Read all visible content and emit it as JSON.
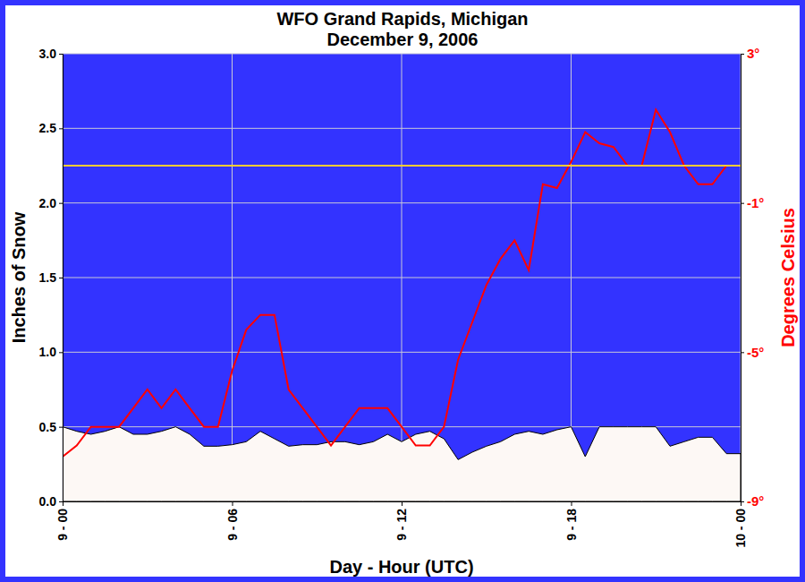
{
  "chart_data": {
    "type": "line",
    "title": "WFO Grand Rapids, Michigan",
    "subtitle": "December 9, 2006",
    "x_label": "Day - Hour (UTC)",
    "y_label": "Inches of Snow",
    "y2_label": "Degrees Celsius",
    "grid": true,
    "xlim": [
      0,
      24
    ],
    "xticks": [
      {
        "value": 0,
        "label": "9 - 00"
      },
      {
        "value": 6,
        "label": "9 - 06"
      },
      {
        "value": 12,
        "label": "9 - 12"
      },
      {
        "value": 18,
        "label": "9 - 18"
      },
      {
        "value": 24,
        "label": "10 - 00"
      }
    ],
    "ylim": [
      0,
      3
    ],
    "yticks": [
      {
        "value": 0,
        "label": "0.0"
      },
      0.5,
      {
        "value": 1,
        "label": "1.0"
      },
      1.5,
      {
        "value": 2,
        "label": "2.0"
      },
      2.5,
      {
        "value": 3,
        "label": "3.0"
      }
    ],
    "y2lim": [
      -9,
      3
    ],
    "y2ticks": [
      {
        "value": -9,
        "label": "-9°"
      },
      {
        "value": -5,
        "label": "-5°"
      },
      {
        "value": -1,
        "label": "-1°"
      },
      {
        "value": 3,
        "label": "3°"
      }
    ],
    "reference_lines": [
      {
        "value": 0,
        "axis": "y2",
        "color": "#ffcc33"
      }
    ],
    "x": [
      0,
      0.5,
      1,
      1.5,
      2,
      2.5,
      3,
      3.5,
      4,
      4.5,
      5,
      5.5,
      6,
      6.5,
      7,
      7.5,
      8,
      8.5,
      9,
      9.5,
      10,
      10.5,
      11,
      11.5,
      12,
      12.5,
      13,
      13.5,
      14,
      14.5,
      15,
      15.5,
      16,
      16.5,
      17,
      17.5,
      18,
      18.5,
      19,
      19.5,
      20,
      20.5,
      21,
      21.5,
      22,
      22.5,
      23,
      23.5,
      24
    ],
    "series": [
      {
        "type": "area",
        "color": "#fdf8f5",
        "values": [
          0.5,
          0.47,
          0.45,
          0.47,
          0.5,
          0.45,
          0.45,
          0.47,
          0.5,
          0.45,
          0.37,
          0.37,
          0.38,
          0.4,
          0.47,
          0.42,
          0.37,
          0.38,
          0.38,
          0.4,
          0.4,
          0.38,
          0.4,
          0.45,
          0.4,
          0.45,
          0.47,
          0.42,
          0.28,
          0.33,
          0.37,
          0.4,
          0.45,
          0.47,
          0.45,
          0.48,
          0.5,
          0.3,
          0.5,
          0.5,
          0.5,
          0.5,
          0.5,
          0.37,
          0.4,
          0.43,
          0.43,
          0.32,
          0.32
        ]
      },
      {
        "type": "line",
        "axis": "y2",
        "color": "#ff0000",
        "values": [
          -7.8,
          -7.5,
          -7.0,
          -7.0,
          -7.0,
          -6.5,
          -6.0,
          -6.5,
          -6.0,
          -6.5,
          -7.0,
          -7.0,
          -5.5,
          -4.4,
          -4.0,
          -4.0,
          -6.0,
          -6.5,
          -7.0,
          -7.5,
          -7.0,
          -6.5,
          -6.5,
          -6.5,
          -7.0,
          -7.5,
          -7.5,
          -7.0,
          -5.2,
          -4.2,
          -3.2,
          -2.5,
          -2.0,
          -2.8,
          -0.5,
          -0.6,
          0.1,
          0.9,
          0.6,
          0.5,
          0.0,
          0.0,
          1.5,
          0.9,
          0.0,
          -0.5,
          -0.5,
          0.0,
          0.0
        ]
      }
    ]
  }
}
